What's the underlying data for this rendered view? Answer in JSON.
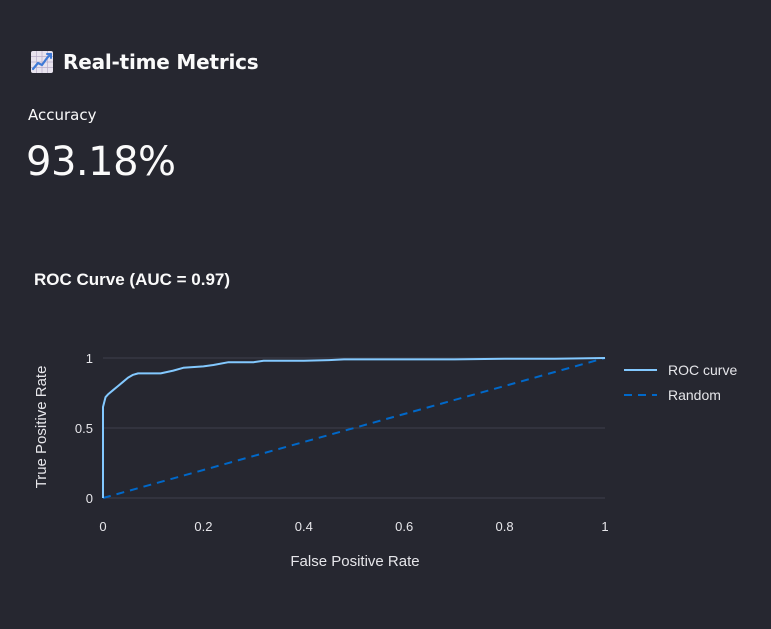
{
  "header": {
    "icon": "chart-increasing-icon",
    "title": "Real-time Metrics"
  },
  "metric": {
    "label": "Accuracy",
    "value": "93.18%"
  },
  "chart_data": {
    "type": "line",
    "title": "ROC Curve (AUC = 0.97)",
    "xlabel": "False Positive Rate",
    "ylabel": "True Positive Rate",
    "xlim": [
      0,
      1
    ],
    "ylim": [
      0,
      1
    ],
    "x_ticks": [
      0,
      0.2,
      0.4,
      0.6,
      0.8,
      1
    ],
    "x_tick_labels": [
      "0",
      "0.2",
      "0.4",
      "0.6",
      "0.8",
      "1"
    ],
    "y_ticks": [
      0,
      0.5,
      1
    ],
    "y_tick_labels": [
      "0",
      "0.5",
      "1"
    ],
    "grid": true,
    "legend": "right",
    "series": [
      {
        "name": "ROC curve",
        "color": "#83c9ff",
        "dash": "solid",
        "x": [
          0,
          0,
          0.005,
          0.01,
          0.02,
          0.03,
          0.04,
          0.05,
          0.06,
          0.07,
          0.1,
          0.115,
          0.14,
          0.16,
          0.2,
          0.22,
          0.25,
          0.3,
          0.32,
          0.4,
          0.45,
          0.48,
          0.6,
          0.7,
          0.8,
          0.9,
          1
        ],
        "y": [
          0,
          0.65,
          0.72,
          0.74,
          0.77,
          0.8,
          0.83,
          0.86,
          0.88,
          0.89,
          0.89,
          0.89,
          0.91,
          0.93,
          0.94,
          0.95,
          0.97,
          0.97,
          0.98,
          0.98,
          0.985,
          0.99,
          0.99,
          0.99,
          0.995,
          0.995,
          1
        ]
      },
      {
        "name": "Random",
        "color": "#0068c9",
        "dash": "dashed",
        "x": [
          0,
          1
        ],
        "y": [
          0,
          1
        ]
      }
    ]
  }
}
